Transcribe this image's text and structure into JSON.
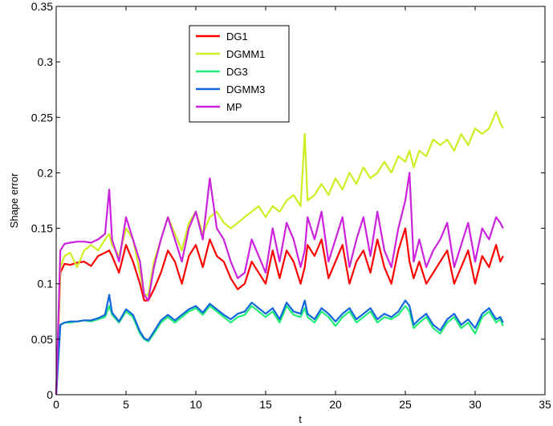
{
  "chart_data": {
    "type": "line",
    "xlabel": "t",
    "ylabel": "Shape error",
    "xlim": [
      0,
      35
    ],
    "ylim": [
      0,
      0.35
    ],
    "xticks": [
      "0",
      "5",
      "10",
      "15",
      "20",
      "25",
      "30",
      "35"
    ],
    "yticks": [
      "0",
      "0.05",
      "0.1",
      "0.15",
      "0.2",
      "0.25",
      "0.3",
      "0.35"
    ],
    "grid": false,
    "legend_position": "top-left",
    "x": [
      0,
      0.3,
      0.6,
      1,
      1.5,
      2,
      2.5,
      3,
      3.5,
      3.8,
      4,
      4.5,
      5,
      5.5,
      6,
      6.3,
      6.6,
      7,
      7.5,
      8,
      8.5,
      9,
      9.5,
      10,
      10.5,
      11,
      11.5,
      12,
      12.5,
      13,
      13.5,
      14,
      14.5,
      15,
      15.5,
      16,
      16.5,
      17,
      17.5,
      17.8,
      18,
      18.5,
      19,
      19.5,
      20,
      20.5,
      21,
      21.5,
      22,
      22.5,
      23,
      23.5,
      24,
      24.5,
      25,
      25.3,
      25.6,
      26,
      26.5,
      27,
      27.5,
      28,
      28.5,
      29,
      29.5,
      30,
      30.5,
      31,
      31.5,
      31.8,
      32
    ],
    "series": [
      {
        "name": "DG1",
        "color": "#ff0000",
        "values": [
          0,
          0.11,
          0.118,
          0.117,
          0.119,
          0.12,
          0.116,
          0.125,
          0.128,
          0.13,
          0.125,
          0.11,
          0.135,
          0.12,
          0.1,
          0.085,
          0.085,
          0.095,
          0.11,
          0.13,
          0.12,
          0.1,
          0.125,
          0.135,
          0.115,
          0.14,
          0.125,
          0.12,
          0.105,
          0.095,
          0.1,
          0.12,
          0.11,
          0.1,
          0.13,
          0.105,
          0.13,
          0.12,
          0.1,
          0.115,
          0.135,
          0.125,
          0.14,
          0.105,
          0.12,
          0.135,
          0.1,
          0.12,
          0.13,
          0.11,
          0.14,
          0.115,
          0.1,
          0.13,
          0.15,
          0.12,
          0.105,
          0.12,
          0.1,
          0.11,
          0.12,
          0.13,
          0.1,
          0.115,
          0.13,
          0.1,
          0.125,
          0.115,
          0.135,
          0.12,
          0.125
        ]
      },
      {
        "name": "DGMM1",
        "color": "#ccee22",
        "values": [
          0,
          0.115,
          0.125,
          0.128,
          0.115,
          0.13,
          0.135,
          0.13,
          0.14,
          0.145,
          0.135,
          0.125,
          0.15,
          0.14,
          0.11,
          0.09,
          0.09,
          0.12,
          0.14,
          0.16,
          0.145,
          0.13,
          0.155,
          0.165,
          0.145,
          0.16,
          0.165,
          0.155,
          0.15,
          0.155,
          0.16,
          0.165,
          0.17,
          0.16,
          0.17,
          0.165,
          0.175,
          0.18,
          0.17,
          0.235,
          0.175,
          0.18,
          0.19,
          0.18,
          0.195,
          0.185,
          0.2,
          0.19,
          0.205,
          0.195,
          0.2,
          0.21,
          0.2,
          0.215,
          0.21,
          0.22,
          0.205,
          0.22,
          0.215,
          0.23,
          0.225,
          0.23,
          0.22,
          0.235,
          0.225,
          0.24,
          0.235,
          0.24,
          0.255,
          0.245,
          0.24
        ]
      },
      {
        "name": "DG3",
        "color": "#22ee77",
        "values": [
          0,
          0.063,
          0.065,
          0.065,
          0.066,
          0.067,
          0.066,
          0.068,
          0.07,
          0.08,
          0.072,
          0.065,
          0.075,
          0.07,
          0.055,
          0.05,
          0.048,
          0.055,
          0.065,
          0.07,
          0.065,
          0.07,
          0.075,
          0.078,
          0.072,
          0.08,
          0.075,
          0.07,
          0.065,
          0.07,
          0.072,
          0.08,
          0.075,
          0.07,
          0.075,
          0.065,
          0.08,
          0.072,
          0.07,
          0.078,
          0.07,
          0.065,
          0.075,
          0.07,
          0.062,
          0.07,
          0.075,
          0.065,
          0.07,
          0.075,
          0.065,
          0.07,
          0.068,
          0.072,
          0.08,
          0.075,
          0.06,
          0.065,
          0.07,
          0.06,
          0.055,
          0.065,
          0.07,
          0.06,
          0.065,
          0.055,
          0.07,
          0.075,
          0.065,
          0.068,
          0.062
        ]
      },
      {
        "name": "DGMM3",
        "color": "#1166dd",
        "values": [
          0,
          0.063,
          0.065,
          0.066,
          0.066,
          0.067,
          0.067,
          0.069,
          0.072,
          0.09,
          0.074,
          0.066,
          0.077,
          0.072,
          0.057,
          0.051,
          0.049,
          0.057,
          0.067,
          0.072,
          0.067,
          0.072,
          0.077,
          0.08,
          0.074,
          0.082,
          0.077,
          0.072,
          0.068,
          0.073,
          0.075,
          0.083,
          0.078,
          0.073,
          0.078,
          0.068,
          0.083,
          0.075,
          0.073,
          0.085,
          0.073,
          0.068,
          0.078,
          0.073,
          0.066,
          0.073,
          0.078,
          0.068,
          0.073,
          0.078,
          0.068,
          0.073,
          0.07,
          0.075,
          0.085,
          0.08,
          0.063,
          0.068,
          0.073,
          0.063,
          0.058,
          0.068,
          0.073,
          0.063,
          0.068,
          0.06,
          0.073,
          0.078,
          0.068,
          0.07,
          0.065
        ]
      },
      {
        "name": "MP",
        "color": "#cc22dd",
        "values": [
          0,
          0.13,
          0.136,
          0.137,
          0.138,
          0.138,
          0.137,
          0.14,
          0.145,
          0.185,
          0.14,
          0.12,
          0.16,
          0.14,
          0.12,
          0.09,
          0.085,
          0.115,
          0.14,
          0.16,
          0.14,
          0.12,
          0.15,
          0.165,
          0.14,
          0.195,
          0.15,
          0.14,
          0.12,
          0.105,
          0.11,
          0.14,
          0.125,
          0.11,
          0.15,
          0.12,
          0.155,
          0.14,
          0.115,
          0.13,
          0.16,
          0.14,
          0.165,
          0.12,
          0.14,
          0.16,
          0.115,
          0.14,
          0.16,
          0.125,
          0.165,
          0.13,
          0.115,
          0.15,
          0.175,
          0.2,
          0.12,
          0.14,
          0.115,
          0.13,
          0.14,
          0.155,
          0.115,
          0.135,
          0.155,
          0.12,
          0.15,
          0.14,
          0.16,
          0.155,
          0.15
        ]
      }
    ]
  }
}
